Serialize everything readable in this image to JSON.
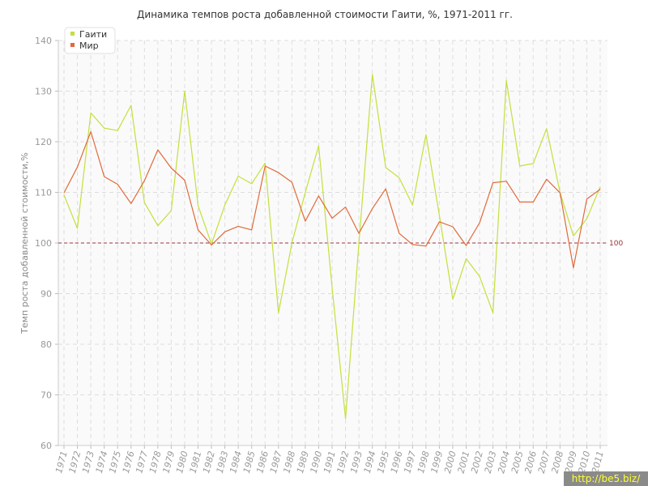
{
  "chart_data": {
    "type": "line",
    "title": "Динамика темпов роста добавленной стоимости Гаити, %, 1971-2011 гг.",
    "xlabel": "",
    "ylabel": "Темп роста добавленной стоимости,%",
    "ylim": [
      60,
      140
    ],
    "yticks": [
      60,
      70,
      80,
      90,
      100,
      110,
      120,
      130,
      140
    ],
    "grid": true,
    "legend_position": "top-left",
    "reference_line": {
      "value": 100,
      "label": "100",
      "color": "#993344"
    },
    "x": [
      "1971",
      "1972",
      "1973",
      "1974",
      "1975",
      "1976",
      "1977",
      "1978",
      "1979",
      "1980",
      "1981",
      "1982",
      "1983",
      "1984",
      "1985",
      "1986",
      "1987",
      "1988",
      "1989",
      "1990",
      "1991",
      "1992",
      "1993",
      "1994",
      "1995",
      "1996",
      "1997",
      "1998",
      "1999",
      "2000",
      "2001",
      "2002",
      "2003",
      "2004",
      "2005",
      "2006",
      "2007",
      "2008",
      "2009",
      "2010",
      "2011"
    ],
    "series": [
      {
        "name": "Гаити",
        "color": "#c4e03c",
        "values": [
          109.5,
          102.9,
          125.7,
          122.7,
          122.2,
          127.2,
          108.0,
          103.4,
          106.4,
          130.0,
          107.4,
          99.8,
          107.5,
          113.2,
          111.7,
          115.8,
          86.2,
          100.0,
          110.0,
          119.2,
          91.2,
          65.3,
          100.0,
          133.3,
          114.9,
          112.9,
          107.5,
          121.4,
          105.5,
          88.9,
          96.9,
          93.4,
          86.2,
          132.1,
          115.2,
          115.7,
          122.6,
          110.0,
          101.4,
          104.8,
          111.1
        ]
      },
      {
        "name": "Мир",
        "color": "#e06a3a",
        "values": [
          109.9,
          115.0,
          122.0,
          113.1,
          111.6,
          107.8,
          112.3,
          118.4,
          114.8,
          112.4,
          102.6,
          99.6,
          102.2,
          103.3,
          102.6,
          115.2,
          113.9,
          112.0,
          104.3,
          109.3,
          104.9,
          107.1,
          101.9,
          106.8,
          110.7,
          101.9,
          99.7,
          99.4,
          104.2,
          103.2,
          99.5,
          104.0,
          111.9,
          112.2,
          108.1,
          108.1,
          112.6,
          109.9,
          95.1,
          108.7,
          110.6
        ]
      }
    ]
  },
  "watermark": "http://be5.biz/"
}
